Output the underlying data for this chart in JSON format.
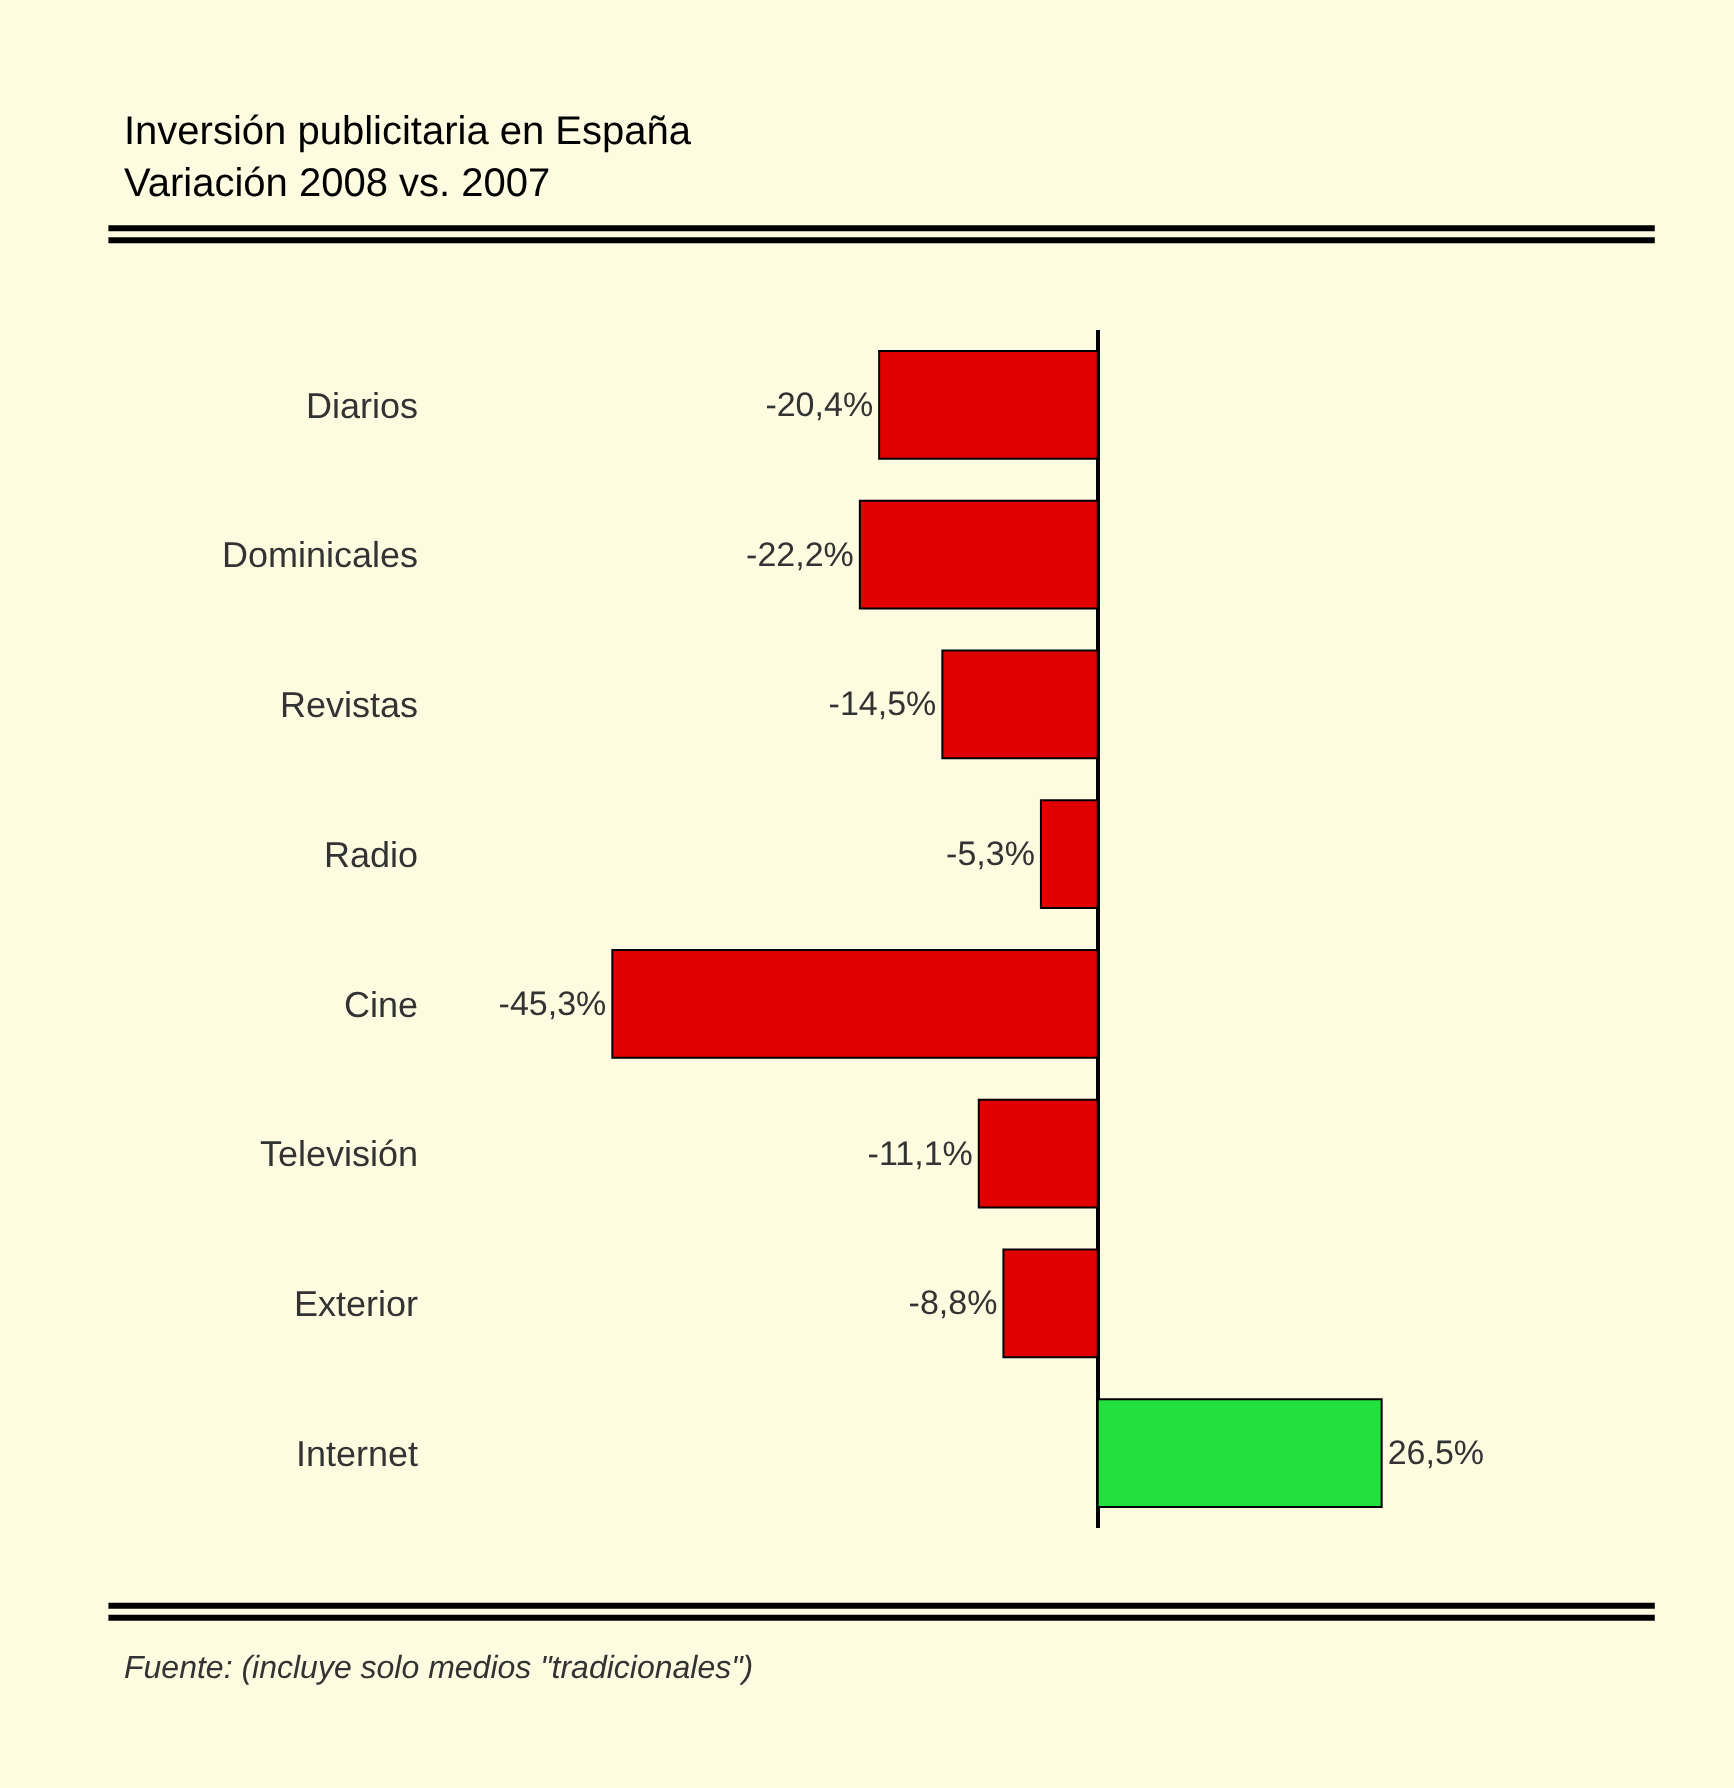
{
  "chart_data": {
    "type": "bar",
    "orientation": "horizontal",
    "title": "Inversión publicitaria en España\nVariación 2008 vs. 2007",
    "categories": [
      "Diarios",
      "Dominicales",
      "Revistas",
      "Radio",
      "Cine",
      "Televisión",
      "Exterior",
      "Internet"
    ],
    "values": [
      -20.4,
      -22.2,
      -14.5,
      -5.3,
      -45.3,
      -11.1,
      -8.8,
      26.5
    ],
    "colors": [
      "#e00000",
      "#e00000",
      "#e00000",
      "#e00000",
      "#e00000",
      "#e00000",
      "#e00000",
      "#22e040"
    ],
    "value_labels": [
      "-20,4%",
      "-22,2%",
      "-14,5%",
      "-5,3%",
      "-45,3%",
      "-11,1%",
      "-8,8%",
      "26,5%"
    ],
    "annotations": [
      "Fuente: (incluye solo medios \"tradicionales\")"
    ],
    "grid": false,
    "legend": false
  }
}
